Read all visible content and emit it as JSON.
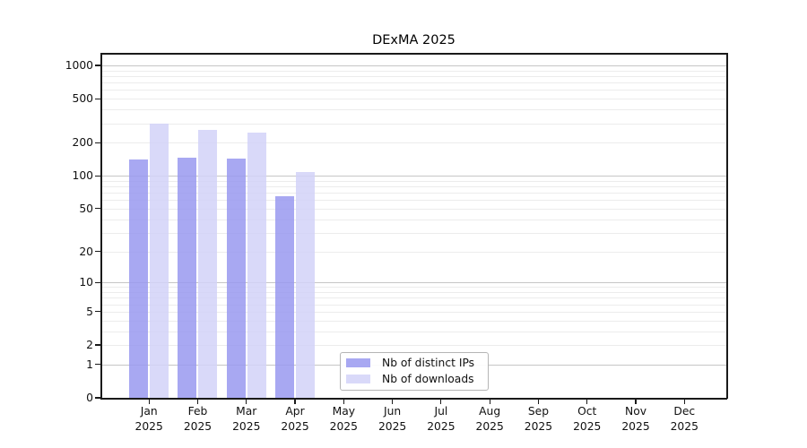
{
  "title": "DExMA 2025",
  "colors": {
    "bar_distinct_ips": "#a8a8f2",
    "bar_downloads": "#d9d9f9",
    "grid_major": "#c6c6c6",
    "grid_minor": "#ececec",
    "spine": "#1a1a1a",
    "background": "#ffffff"
  },
  "legend": {
    "items": [
      {
        "label": "Nb of distinct IPs",
        "color": "#a8a8f2"
      },
      {
        "label": "Nb of downloads",
        "color": "#d9d9f9"
      }
    ]
  },
  "chart_data": {
    "type": "bar",
    "title": "DExMA 2025",
    "categories": [
      "Jan\n2025",
      "Feb\n2025",
      "Mar\n2025",
      "Apr\n2025",
      "May\n2025",
      "Jun\n2025",
      "Jul\n2025",
      "Aug\n2025",
      "Sep\n2025",
      "Oct\n2025",
      "Nov\n2025",
      "Dec\n2025"
    ],
    "series": [
      {
        "name": "Nb of distinct IPs",
        "color": "#a8a8f2",
        "values": [
          140,
          146,
          144,
          65,
          null,
          null,
          null,
          null,
          null,
          null,
          null,
          null
        ]
      },
      {
        "name": "Nb of downloads",
        "color": "#d9d9f9",
        "values": [
          300,
          260,
          248,
          108,
          null,
          null,
          null,
          null,
          null,
          null,
          null,
          null
        ]
      }
    ],
    "xlabel": "",
    "ylabel": "",
    "yscale": "log1p",
    "ylim": [
      0,
      1275
    ],
    "yticks": [
      0,
      1,
      2,
      5,
      10,
      20,
      50,
      100,
      200,
      500,
      1000
    ],
    "grid": true,
    "legend_position": "lower center"
  }
}
